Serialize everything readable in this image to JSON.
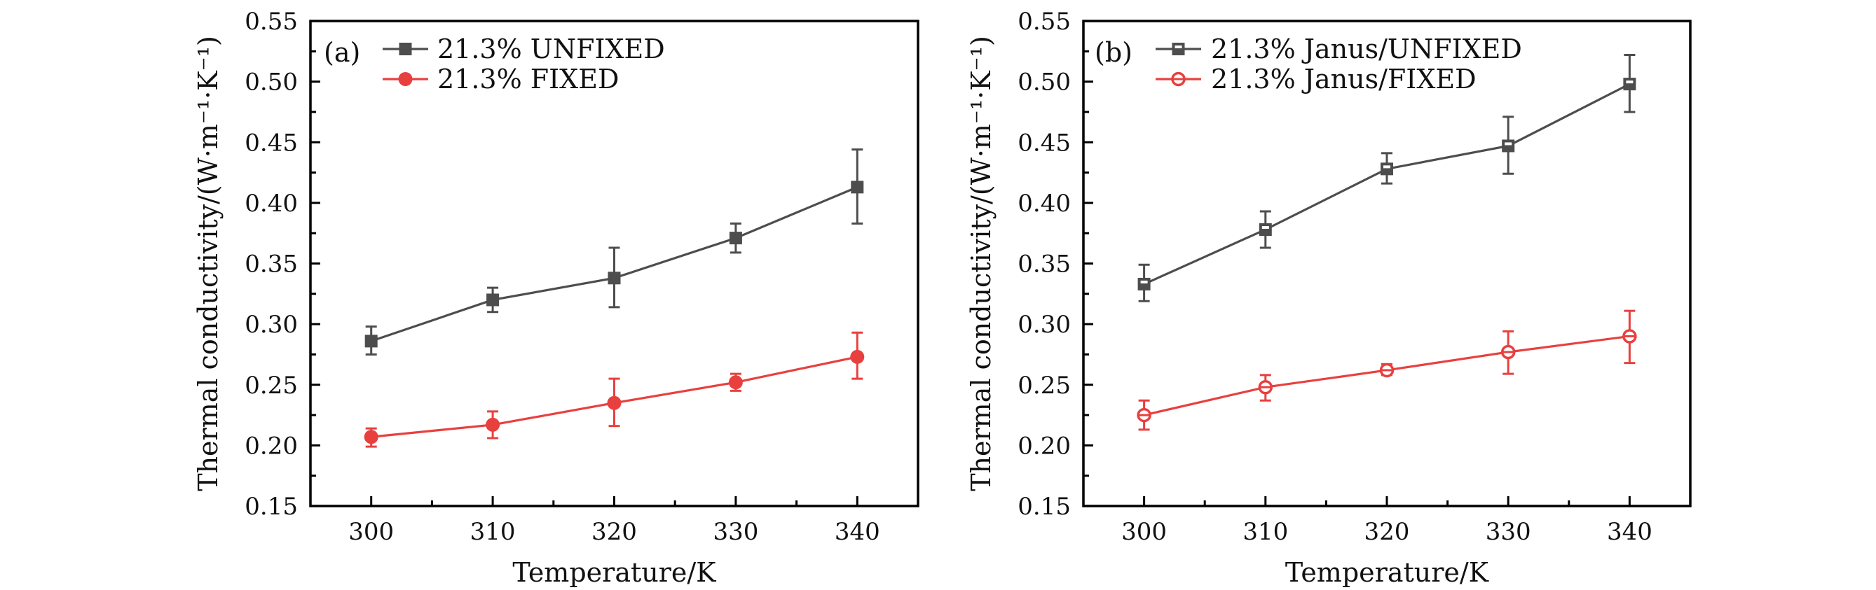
{
  "chart_data": [
    {
      "panel": "(a)",
      "type": "line",
      "title": "",
      "xlabel": "Temperature/K",
      "ylabel": "Thermal conductivity/(W·m⁻¹·K⁻¹)",
      "xlim": [
        295,
        345
      ],
      "ylim": [
        0.15,
        0.55
      ],
      "xticks": [
        300,
        310,
        320,
        330,
        340
      ],
      "xtick_labels": [
        "300",
        "310",
        "320",
        "330",
        "340"
      ],
      "yticks": [
        0.15,
        0.2,
        0.25,
        0.3,
        0.35,
        0.4,
        0.45,
        0.5,
        0.55
      ],
      "ytick_labels": [
        "0.15",
        "0.20",
        "0.25",
        "0.30",
        "0.35",
        "0.40",
        "0.45",
        "0.50",
        "0.55"
      ],
      "grid": false,
      "legend_position": "top-left",
      "x": [
        300,
        310,
        320,
        330,
        340
      ],
      "series": [
        {
          "name": "21.3% UNFIXED",
          "color": "#4d4d4d",
          "marker": "filled-square",
          "values": [
            0.286,
            0.32,
            0.338,
            0.371,
            0.413
          ],
          "error_low": [
            0.275,
            0.31,
            0.314,
            0.359,
            0.383
          ],
          "error_high": [
            0.298,
            0.33,
            0.363,
            0.383,
            0.444
          ]
        },
        {
          "name": "21.3% FIXED",
          "color": "#e8403f",
          "marker": "filled-circle",
          "values": [
            0.207,
            0.217,
            0.235,
            0.252,
            0.273
          ],
          "error_low": [
            0.199,
            0.206,
            0.216,
            0.245,
            0.255
          ],
          "error_high": [
            0.214,
            0.228,
            0.255,
            0.259,
            0.293
          ]
        }
      ]
    },
    {
      "panel": "(b)",
      "type": "line",
      "title": "",
      "xlabel": "Temperature/K",
      "ylabel": "Thermal conductivity/(W·m⁻¹·K⁻¹)",
      "xlim": [
        295,
        345
      ],
      "ylim": [
        0.15,
        0.55
      ],
      "xticks": [
        300,
        310,
        320,
        330,
        340
      ],
      "xtick_labels": [
        "300",
        "310",
        "320",
        "330",
        "340"
      ],
      "yticks": [
        0.15,
        0.2,
        0.25,
        0.3,
        0.35,
        0.4,
        0.45,
        0.5,
        0.55
      ],
      "ytick_labels": [
        "0.15",
        "0.20",
        "0.25",
        "0.30",
        "0.35",
        "0.40",
        "0.45",
        "0.50",
        "0.55"
      ],
      "grid": false,
      "legend_position": "top-left",
      "x": [
        300,
        310,
        320,
        330,
        340
      ],
      "series": [
        {
          "name": "21.3% Janus/UNFIXED",
          "color": "#4d4d4d",
          "marker": "open-square",
          "values": [
            0.333,
            0.378,
            0.428,
            0.447,
            0.498
          ],
          "error_low": [
            0.319,
            0.363,
            0.416,
            0.424,
            0.475
          ],
          "error_high": [
            0.349,
            0.393,
            0.441,
            0.471,
            0.522
          ]
        },
        {
          "name": "21.3% Janus/FIXED",
          "color": "#e8403f",
          "marker": "open-circle",
          "values": [
            0.225,
            0.248,
            0.262,
            0.277,
            0.29
          ],
          "error_low": [
            0.213,
            0.237,
            0.258,
            0.259,
            0.268
          ],
          "error_high": [
            0.237,
            0.258,
            0.267,
            0.294,
            0.311
          ]
        }
      ]
    }
  ]
}
